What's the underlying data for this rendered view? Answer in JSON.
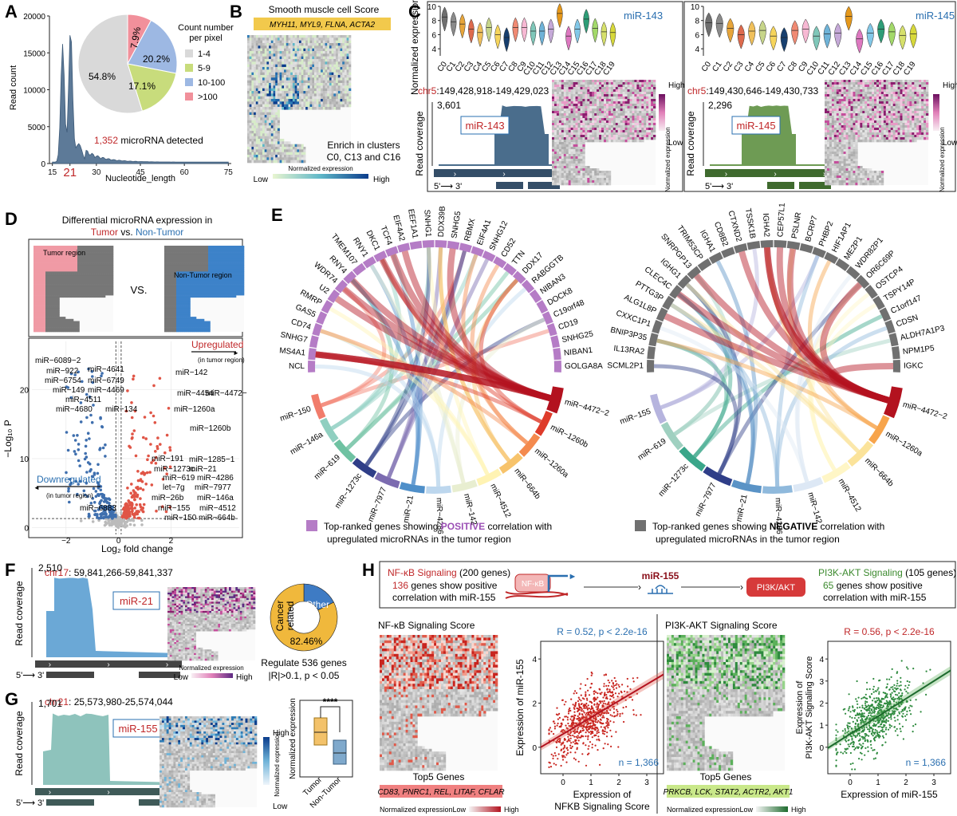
{
  "panel_labels": {
    "A": "A",
    "B": "B",
    "C": "C",
    "D": "D",
    "E": "E",
    "F": "F",
    "G": "G",
    "H": "H"
  },
  "panelA": {
    "ylabel": "Read count",
    "xlabel": "Nucleotide_length",
    "yticks": [
      "0",
      "5000",
      "10000",
      "15000",
      "20000"
    ],
    "xticks": [
      "15",
      "21",
      "30",
      "45",
      "60",
      "75"
    ],
    "annotation_number": "1,352",
    "annotation_text": " microRNA detected",
    "pie_legend_title_1": "Count number",
    "pie_legend_title_2": "per pixel",
    "pie_legend": [
      "1-4",
      "5-9",
      "10-100",
      ">100"
    ],
    "pie_labels": [
      "54.8%",
      "17.1%",
      "20.2%",
      "7.9%"
    ]
  },
  "panelB": {
    "title": "Smooth muscle cell Score",
    "genes": "MYH11, MYL9, FLNA, ACTA2",
    "enrich_1": "Enrich in clusters",
    "enrich_2": "C0, C13 and C16",
    "colorbar_title": "Normalized expression",
    "low": "Low",
    "high": "High"
  },
  "panelC": {
    "ylabel": "Normalized expression",
    "clusters": [
      "C0",
      "C1",
      "C2",
      "C3",
      "C4",
      "C5",
      "C6",
      "C7",
      "C8",
      "C9",
      "C10",
      "C11",
      "C12",
      "C13",
      "C14",
      "C15",
      "C16",
      "C17",
      "C18",
      "C19"
    ],
    "left": {
      "mirna": "miR-143",
      "chr_prefix": "chr5",
      "chr_rest": ":149,428,918-149,429,023",
      "max": "3,601"
    },
    "right": {
      "mirna": "miR-145",
      "chr_prefix": "chr5",
      "chr_rest": ":149,430,646-149,430,733",
      "max": "2,296"
    },
    "read_coverage": "Read coverage",
    "strand": "5'⟶ 3'",
    "high": "High",
    "low": "Low",
    "norm_label": "Normalized expression"
  },
  "panelD": {
    "title_1": "Differential microRNA expression in",
    "tumor": "Tumor",
    "vs": " vs. ",
    "nontumor": "Non-Tumor",
    "tumor_region": "Tumor region",
    "vs_big": "VS.",
    "nontumor_region": "Non-Tumor region",
    "ylabel": "−Log₁₀ P",
    "xlabel": "Log₂ fold change",
    "up": "Upregulated",
    "up_sub": "(in tumor region)",
    "down": "Downregulated",
    "down_sub": "(in tumor region)",
    "xticks": [
      "−2",
      "0",
      "2"
    ],
    "yticks": [
      "0",
      "10",
      "20"
    ],
    "labels_up": [
      "miR−142",
      "miR−4454",
      "miR−4472−2",
      "miR−1260a",
      "miR−1260b",
      "miR−191",
      "miR−1285−1",
      "miR−1273c",
      "miR−21",
      "miR−619",
      "miR−4286",
      "let−7g",
      "miR−7977",
      "miR−26b",
      "miR−146a",
      "miR−155",
      "miR−4512",
      "miR−150",
      "miR−664b"
    ],
    "labels_down": [
      "miR−6089−2",
      "miR−922",
      "miR−4641",
      "miR−6754",
      "miR−6749",
      "miR−149",
      "miR−4469",
      "miR−4511",
      "miR−4680",
      "miR−134",
      "miR−6883"
    ]
  },
  "panelE": {
    "left_genes": [
      "NCL",
      "MS4A1",
      "SNHG7",
      "CD74",
      "GAS5",
      "RMRP",
      "U2",
      "WDR74",
      "RNY4",
      "TMEM107",
      "RNY1",
      "DKC1",
      "TCF4",
      "EIF4A2",
      "EEF1A1",
      "SNHG1",
      "DDX39B",
      "SNHG5",
      "RBMX",
      "EIF4A1",
      "SNHG12",
      "CD52",
      "TTN",
      "DDX17",
      "RABGGTB",
      "NIBAN3",
      "DOCK8",
      "C19orf48",
      "CD19",
      "SNHG25",
      "NIBAN1",
      "GOLGA8A"
    ],
    "left_mirs": [
      "miR−150",
      "miR−146a",
      "miR−619",
      "miR−1273c",
      "miR−7977",
      "miR−21",
      "miR−4286",
      "miR−142",
      "miR−4512",
      "miR−664b",
      "miR−1260a",
      "miR−1260b",
      "miR−4472−2"
    ],
    "right_genes": [
      "SCML2P1",
      "IL13RA2",
      "BNIP3P35",
      "CXXC1P1",
      "ALG1L8P",
      "PTTG3P",
      "CLEC4C",
      "IGHG1",
      "SNRPGP13",
      "TRIM53CP",
      "IGHA1",
      "CD8B2",
      "CTXND2",
      "TSSK1B",
      "IGHA2",
      "CEP57L1P1",
      "PSLNR",
      "BCRP7",
      "PHBP2",
      "HIF1AP1",
      "ME2P1",
      "WDR82P1",
      "OR6C69P",
      "OSTCP4",
      "TSPY14P",
      "C1orf147",
      "CDSN",
      "ALDH7A1P3",
      "NPM1P5",
      "IGKC"
    ],
    "right_mirs": [
      "miR−155",
      "miR−619",
      "miR−1273c",
      "miR−7977",
      "miR−21",
      "miR−4286",
      "miR−142",
      "miR−4512",
      "miR−664b",
      "miR−1260a",
      "miR−4472−2"
    ],
    "legend_left_1": "Top-ranked genes showing ",
    "legend_left_bold": "POSITIVE",
    "legend_left_2": " correlation with",
    "legend_left_3": "upregulated microRNAs in the tumor region",
    "legend_right_1": "Top-ranked genes showing ",
    "legend_right_bold": "NEGATIVE",
    "legend_right_2": " correlation with",
    "legend_right_3": "upregulated microRNAs in the tumor region",
    "colors": {
      "positive": "#b57cc6",
      "negative": "#707070"
    }
  },
  "panelF": {
    "chr_prefix": "chr17",
    "chr_rest": ": 59,841,266-59,841,337",
    "max": "2,510",
    "mirna": "miR-21",
    "ylabel": "Read coverage",
    "strand": "5'⟶ 3'",
    "colorbar": "Normalized expression",
    "low": "Low",
    "high": "High",
    "donut_other": "Other",
    "donut_cancer_1": "Cancer",
    "donut_cancer_2": "related",
    "donut_pct": "82.46%",
    "regulate_1": "Regulate 536 genes",
    "regulate_2": "|R|>0.1, p < 0.05"
  },
  "panelG": {
    "chr_prefix": "chr21",
    "chr_rest": ": 25,573,980-25,574,044",
    "max": "1,701",
    "mirna": "miR-155",
    "ylabel": "Read coverage",
    "strand": "5'⟶ 3'",
    "high": "High",
    "low": "Low",
    "norm": "Normalized expression",
    "box_ylabel": "Normalized expression",
    "box_cats": [
      "Tumor",
      "Non-Tumor"
    ],
    "sig": "****"
  },
  "panelH": {
    "nfkb_title": "NF-κB Signaling",
    "nfkb_count": " (200 genes)",
    "nfkb_pos_num": "136",
    "nfkb_pos_text": " genes show positive",
    "nfkb_pos_text2": "correlation with miR-155",
    "pi3k_title": "PI3K-AKT Signaling",
    "pi3k_count": " (105 genes)",
    "pi3k_pos_num": "65",
    "pi3k_pos_text": " genes show positive",
    "pi3k_pos_text2": "correlation with miR-155",
    "schema_nfkb": "NF-κB",
    "schema_mir": "miR-155",
    "schema_pi3k": "PI3K/AKT",
    "nfkb_score_title": "NF-κB Signaling Score",
    "pi3k_score_title": "PI3K-AKT Signaling Score",
    "top5": "Top5 Genes",
    "nfkb_genes": "CD83, PNRC1, REL, LITAF, CFLAR",
    "pi3k_genes": "PRKCB, LCK, STAT2, ACTR2, AKT1",
    "norm": "Normalized expression",
    "low": "Low",
    "high": "High",
    "left_stat": "R = 0.52, p < 2.2e-16",
    "right_stat": "R = 0.56, p < 2.2e-16",
    "n": "n = 1,366",
    "left_ylabel": "Expression of miR-155",
    "left_xlabel_1": "Expression of",
    "left_xlabel_2": "NFKB Signaling Score",
    "right_ylabel_1": "Expression of",
    "right_ylabel_2": "PI3K-AKT Signaling Score",
    "right_xlabel": "Expression of miR-155",
    "left_xticks": [
      "0",
      "1",
      "2",
      "3"
    ],
    "left_yticks": [
      "0",
      "2",
      "4"
    ],
    "right_xticks": [
      "0",
      "1",
      "2",
      "3"
    ],
    "right_yticks": [
      "0",
      "1",
      "2",
      "3",
      "4"
    ]
  }
}
